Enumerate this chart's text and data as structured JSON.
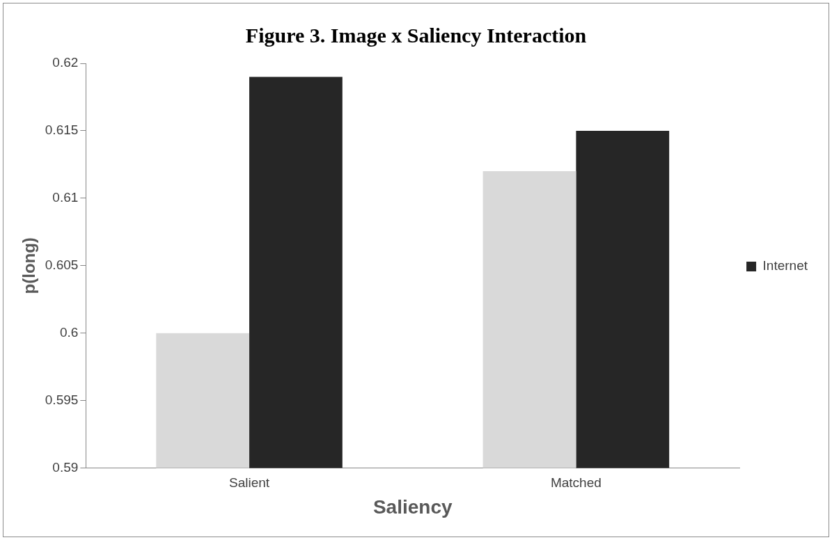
{
  "chart_data": {
    "type": "bar",
    "title": "Figure 3. Image x Saliency Interaction",
    "xlabel": "Saliency",
    "ylabel": "p(long)",
    "categories": [
      "Salient",
      "Matched"
    ],
    "series": [
      {
        "color": "#d9d9d9",
        "values": [
          0.6,
          0.612
        ]
      },
      {
        "name": "Internet",
        "color": "#262626",
        "values": [
          0.619,
          0.615
        ]
      }
    ],
    "ylim": [
      0.59,
      0.62
    ],
    "yticks": [
      0.59,
      0.595,
      0.6,
      0.605,
      0.61,
      0.615,
      0.62
    ],
    "grid": false,
    "legend": "right"
  }
}
